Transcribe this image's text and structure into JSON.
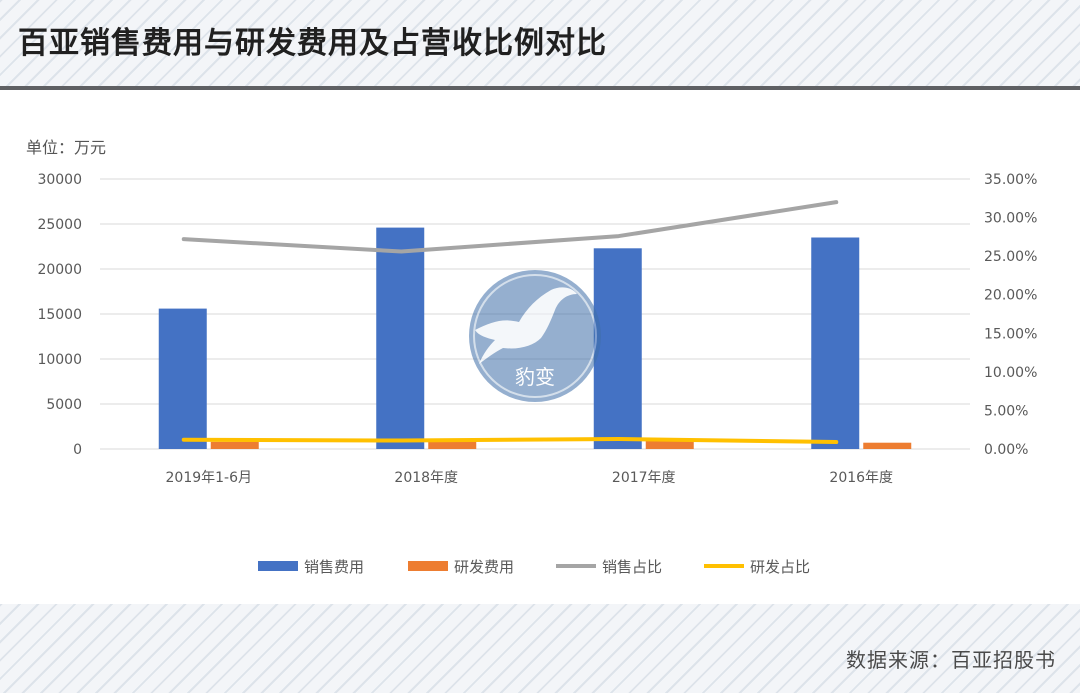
{
  "title": "百亚销售费用与研发费用及占营收比例对比",
  "unit_label": "单位：万元",
  "source": "数据来源：百亚招股书",
  "watermark_text": "豹变",
  "colors": {
    "sales_expense": "#4472c4",
    "rd_expense": "#ed7d31",
    "sales_ratio": "#a5a5a5",
    "rd_ratio": "#ffc000"
  },
  "chart_data": {
    "type": "bar",
    "categories": [
      "2019年1-6月",
      "2018年度",
      "2017年度",
      "2016年度"
    ],
    "series": [
      {
        "name": "销售费用",
        "type": "bar",
        "axis": "left",
        "values": [
          15600,
          24600,
          22300,
          23500
        ]
      },
      {
        "name": "研发费用",
        "type": "bar",
        "axis": "left",
        "values": [
          800,
          850,
          1000,
          700
        ]
      },
      {
        "name": "销售占比",
        "type": "line",
        "axis": "right",
        "values": [
          0.272,
          0.256,
          0.276,
          0.32
        ]
      },
      {
        "name": "研发占比",
        "type": "line",
        "axis": "right",
        "values": [
          0.012,
          0.011,
          0.013,
          0.009
        ]
      }
    ],
    "left_axis": {
      "min": 0,
      "max": 30000,
      "ticks": [
        "0",
        "5000",
        "10000",
        "15000",
        "20000",
        "25000",
        "30000"
      ]
    },
    "right_axis": {
      "min": 0,
      "max": 0.35,
      "ticks": [
        "0.00%",
        "5.00%",
        "10.00%",
        "15.00%",
        "20.00%",
        "25.00%",
        "30.00%",
        "35.00%"
      ]
    },
    "grid": true,
    "legend_position": "bottom"
  }
}
